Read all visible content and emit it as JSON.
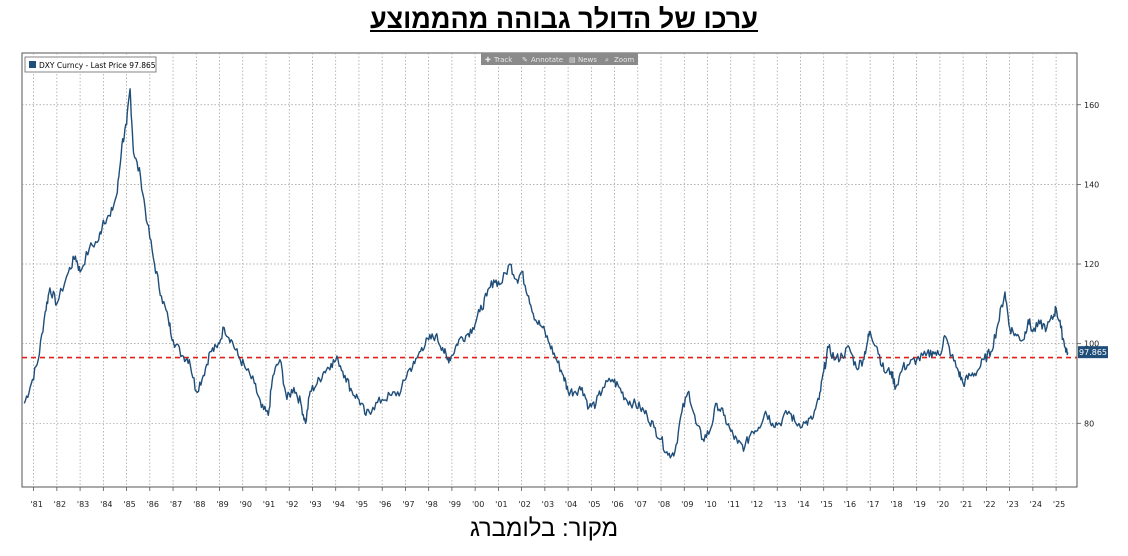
{
  "title": "ערכו של הדולר גבוהה מהממוצע",
  "source": "מקור: בלומברג",
  "toolbar": [
    "Track",
    "Annotate",
    "News",
    "Zoom"
  ],
  "colors": {
    "series": "#1f4e79",
    "average_line": "#e0201b",
    "grid": "#9a9a9a"
  },
  "chart_data": {
    "type": "line",
    "legend": {
      "label": "DXY Curncy - Last Price 97.865",
      "position": "top-left"
    },
    "series": [
      {
        "name": "DXY Curncy - Last Price",
        "points": [
          [
            1980.6,
            85
          ],
          [
            1980.9,
            90
          ],
          [
            1981.2,
            96
          ],
          [
            1981.5,
            108
          ],
          [
            1981.7,
            114
          ],
          [
            1982.0,
            110
          ],
          [
            1982.5,
            118
          ],
          [
            1982.8,
            122
          ],
          [
            1983.0,
            118
          ],
          [
            1983.4,
            124
          ],
          [
            1983.8,
            126
          ],
          [
            1984.0,
            131
          ],
          [
            1984.3,
            132
          ],
          [
            1984.6,
            138
          ],
          [
            1984.8,
            150
          ],
          [
            1985.0,
            155
          ],
          [
            1985.15,
            164
          ],
          [
            1985.3,
            148
          ],
          [
            1985.6,
            142
          ],
          [
            1985.9,
            130
          ],
          [
            1986.2,
            120
          ],
          [
            1986.5,
            112
          ],
          [
            1986.8,
            106
          ],
          [
            1987.0,
            101
          ],
          [
            1987.4,
            97
          ],
          [
            1987.7,
            96
          ],
          [
            1988.0,
            88
          ],
          [
            1988.3,
            92
          ],
          [
            1988.6,
            98
          ],
          [
            1988.9,
            99
          ],
          [
            1989.2,
            104
          ],
          [
            1989.5,
            101
          ],
          [
            1989.8,
            97
          ],
          [
            1990.1,
            94
          ],
          [
            1990.5,
            90
          ],
          [
            1990.8,
            84
          ],
          [
            1991.1,
            82
          ],
          [
            1991.3,
            92
          ],
          [
            1991.6,
            96
          ],
          [
            1991.9,
            86
          ],
          [
            1992.2,
            89
          ],
          [
            1992.5,
            85
          ],
          [
            1992.7,
            80
          ],
          [
            1992.9,
            88
          ],
          [
            1993.2,
            90
          ],
          [
            1993.5,
            93
          ],
          [
            1993.8,
            95
          ],
          [
            1994.1,
            96
          ],
          [
            1994.4,
            92
          ],
          [
            1994.7,
            88
          ],
          [
            1995.0,
            86
          ],
          [
            1995.3,
            82
          ],
          [
            1995.6,
            84
          ],
          [
            1996.0,
            86
          ],
          [
            1996.4,
            87
          ],
          [
            1996.8,
            88
          ],
          [
            1997.1,
            93
          ],
          [
            1997.4,
            95
          ],
          [
            1997.7,
            99
          ],
          [
            1998.0,
            101
          ],
          [
            1998.3,
            102
          ],
          [
            1998.6,
            99
          ],
          [
            1998.8,
            96
          ],
          [
            1999.0,
            97
          ],
          [
            1999.3,
            101
          ],
          [
            1999.6,
            102
          ],
          [
            1999.9,
            104
          ],
          [
            2000.2,
            108
          ],
          [
            2000.5,
            112
          ],
          [
            2000.8,
            116
          ],
          [
            2001.1,
            115
          ],
          [
            2001.5,
            120
          ],
          [
            2001.8,
            116
          ],
          [
            2002.0,
            118
          ],
          [
            2002.3,
            112
          ],
          [
            2002.6,
            106
          ],
          [
            2002.9,
            104
          ],
          [
            2003.2,
            100
          ],
          [
            2003.5,
            96
          ],
          [
            2003.8,
            92
          ],
          [
            2004.0,
            88
          ],
          [
            2004.3,
            88
          ],
          [
            2004.6,
            89
          ],
          [
            2004.9,
            84
          ],
          [
            2005.2,
            85
          ],
          [
            2005.5,
            89
          ],
          [
            2005.9,
            91
          ],
          [
            2006.2,
            89
          ],
          [
            2006.5,
            86
          ],
          [
            2006.8,
            85
          ],
          [
            2007.1,
            84
          ],
          [
            2007.4,
            82
          ],
          [
            2007.7,
            79
          ],
          [
            2008.0,
            76
          ],
          [
            2008.3,
            72
          ],
          [
            2008.6,
            73
          ],
          [
            2008.9,
            83
          ],
          [
            2009.2,
            88
          ],
          [
            2009.5,
            80
          ],
          [
            2009.8,
            76
          ],
          [
            2010.1,
            78
          ],
          [
            2010.4,
            85
          ],
          [
            2010.7,
            82
          ],
          [
            2011.0,
            78
          ],
          [
            2011.3,
            75
          ],
          [
            2011.6,
            74
          ],
          [
            2011.9,
            78
          ],
          [
            2012.2,
            79
          ],
          [
            2012.5,
            83
          ],
          [
            2012.8,
            80
          ],
          [
            2013.1,
            80
          ],
          [
            2013.5,
            83
          ],
          [
            2013.8,
            80
          ],
          [
            2014.2,
            80
          ],
          [
            2014.5,
            81
          ],
          [
            2014.8,
            86
          ],
          [
            2015.0,
            93
          ],
          [
            2015.2,
            99
          ],
          [
            2015.5,
            96
          ],
          [
            2015.8,
            97
          ],
          [
            2016.1,
            99
          ],
          [
            2016.4,
            94
          ],
          [
            2016.7,
            96
          ],
          [
            2016.9,
            101
          ],
          [
            2017.0,
            103
          ],
          [
            2017.3,
            99
          ],
          [
            2017.6,
            93
          ],
          [
            2017.9,
            93
          ],
          [
            2018.1,
            89
          ],
          [
            2018.4,
            94
          ],
          [
            2018.7,
            95
          ],
          [
            2019.0,
            96
          ],
          [
            2019.4,
            97
          ],
          [
            2019.7,
            98
          ],
          [
            2020.0,
            97
          ],
          [
            2020.2,
            102
          ],
          [
            2020.5,
            97
          ],
          [
            2020.8,
            93
          ],
          [
            2021.0,
            90
          ],
          [
            2021.3,
            92
          ],
          [
            2021.6,
            93
          ],
          [
            2021.9,
            96
          ],
          [
            2022.2,
            98
          ],
          [
            2022.5,
            105
          ],
          [
            2022.8,
            113
          ],
          [
            2023.0,
            104
          ],
          [
            2023.3,
            102
          ],
          [
            2023.6,
            101
          ],
          [
            2023.8,
            106
          ],
          [
            2024.0,
            103
          ],
          [
            2024.3,
            105
          ],
          [
            2024.6,
            104
          ],
          [
            2024.9,
            107
          ],
          [
            2025.0,
            109
          ],
          [
            2025.2,
            104
          ],
          [
            2025.4,
            99
          ],
          [
            2025.5,
            97.865
          ]
        ]
      }
    ],
    "average_line": 96.5,
    "last_value_label": "97.865",
    "x_tick_labels": [
      "'81",
      "'82",
      "'83",
      "'84",
      "'85",
      "'86",
      "'87",
      "'88",
      "'89",
      "'90",
      "'91",
      "'92",
      "'93",
      "'94",
      "'95",
      "'96",
      "'97",
      "'98",
      "'99",
      "'00",
      "'01",
      "'02",
      "'03",
      "'04",
      "'05",
      "'06",
      "'07",
      "'08",
      "'09",
      "'10",
      "'11",
      "'12",
      "'13",
      "'14",
      "'15",
      "'16",
      "'17",
      "'18",
      "'19",
      "'20",
      "'21",
      "'22",
      "'23",
      "'24",
      "'25"
    ],
    "x_tick_years": [
      1981,
      1982,
      1983,
      1984,
      1985,
      1986,
      1987,
      1988,
      1989,
      1990,
      1991,
      1992,
      1993,
      1994,
      1995,
      1996,
      1997,
      1998,
      1999,
      2000,
      2001,
      2002,
      2003,
      2004,
      2005,
      2006,
      2007,
      2008,
      2009,
      2010,
      2011,
      2012,
      2013,
      2014,
      2015,
      2016,
      2017,
      2018,
      2019,
      2020,
      2021,
      2022,
      2023,
      2024,
      2025
    ],
    "y_ticks": [
      80,
      100,
      120,
      140,
      160
    ],
    "xlim": [
      1980.5,
      2025.9
    ],
    "ylim": [
      64,
      173
    ],
    "grid": true,
    "y_axis_side": "right"
  }
}
